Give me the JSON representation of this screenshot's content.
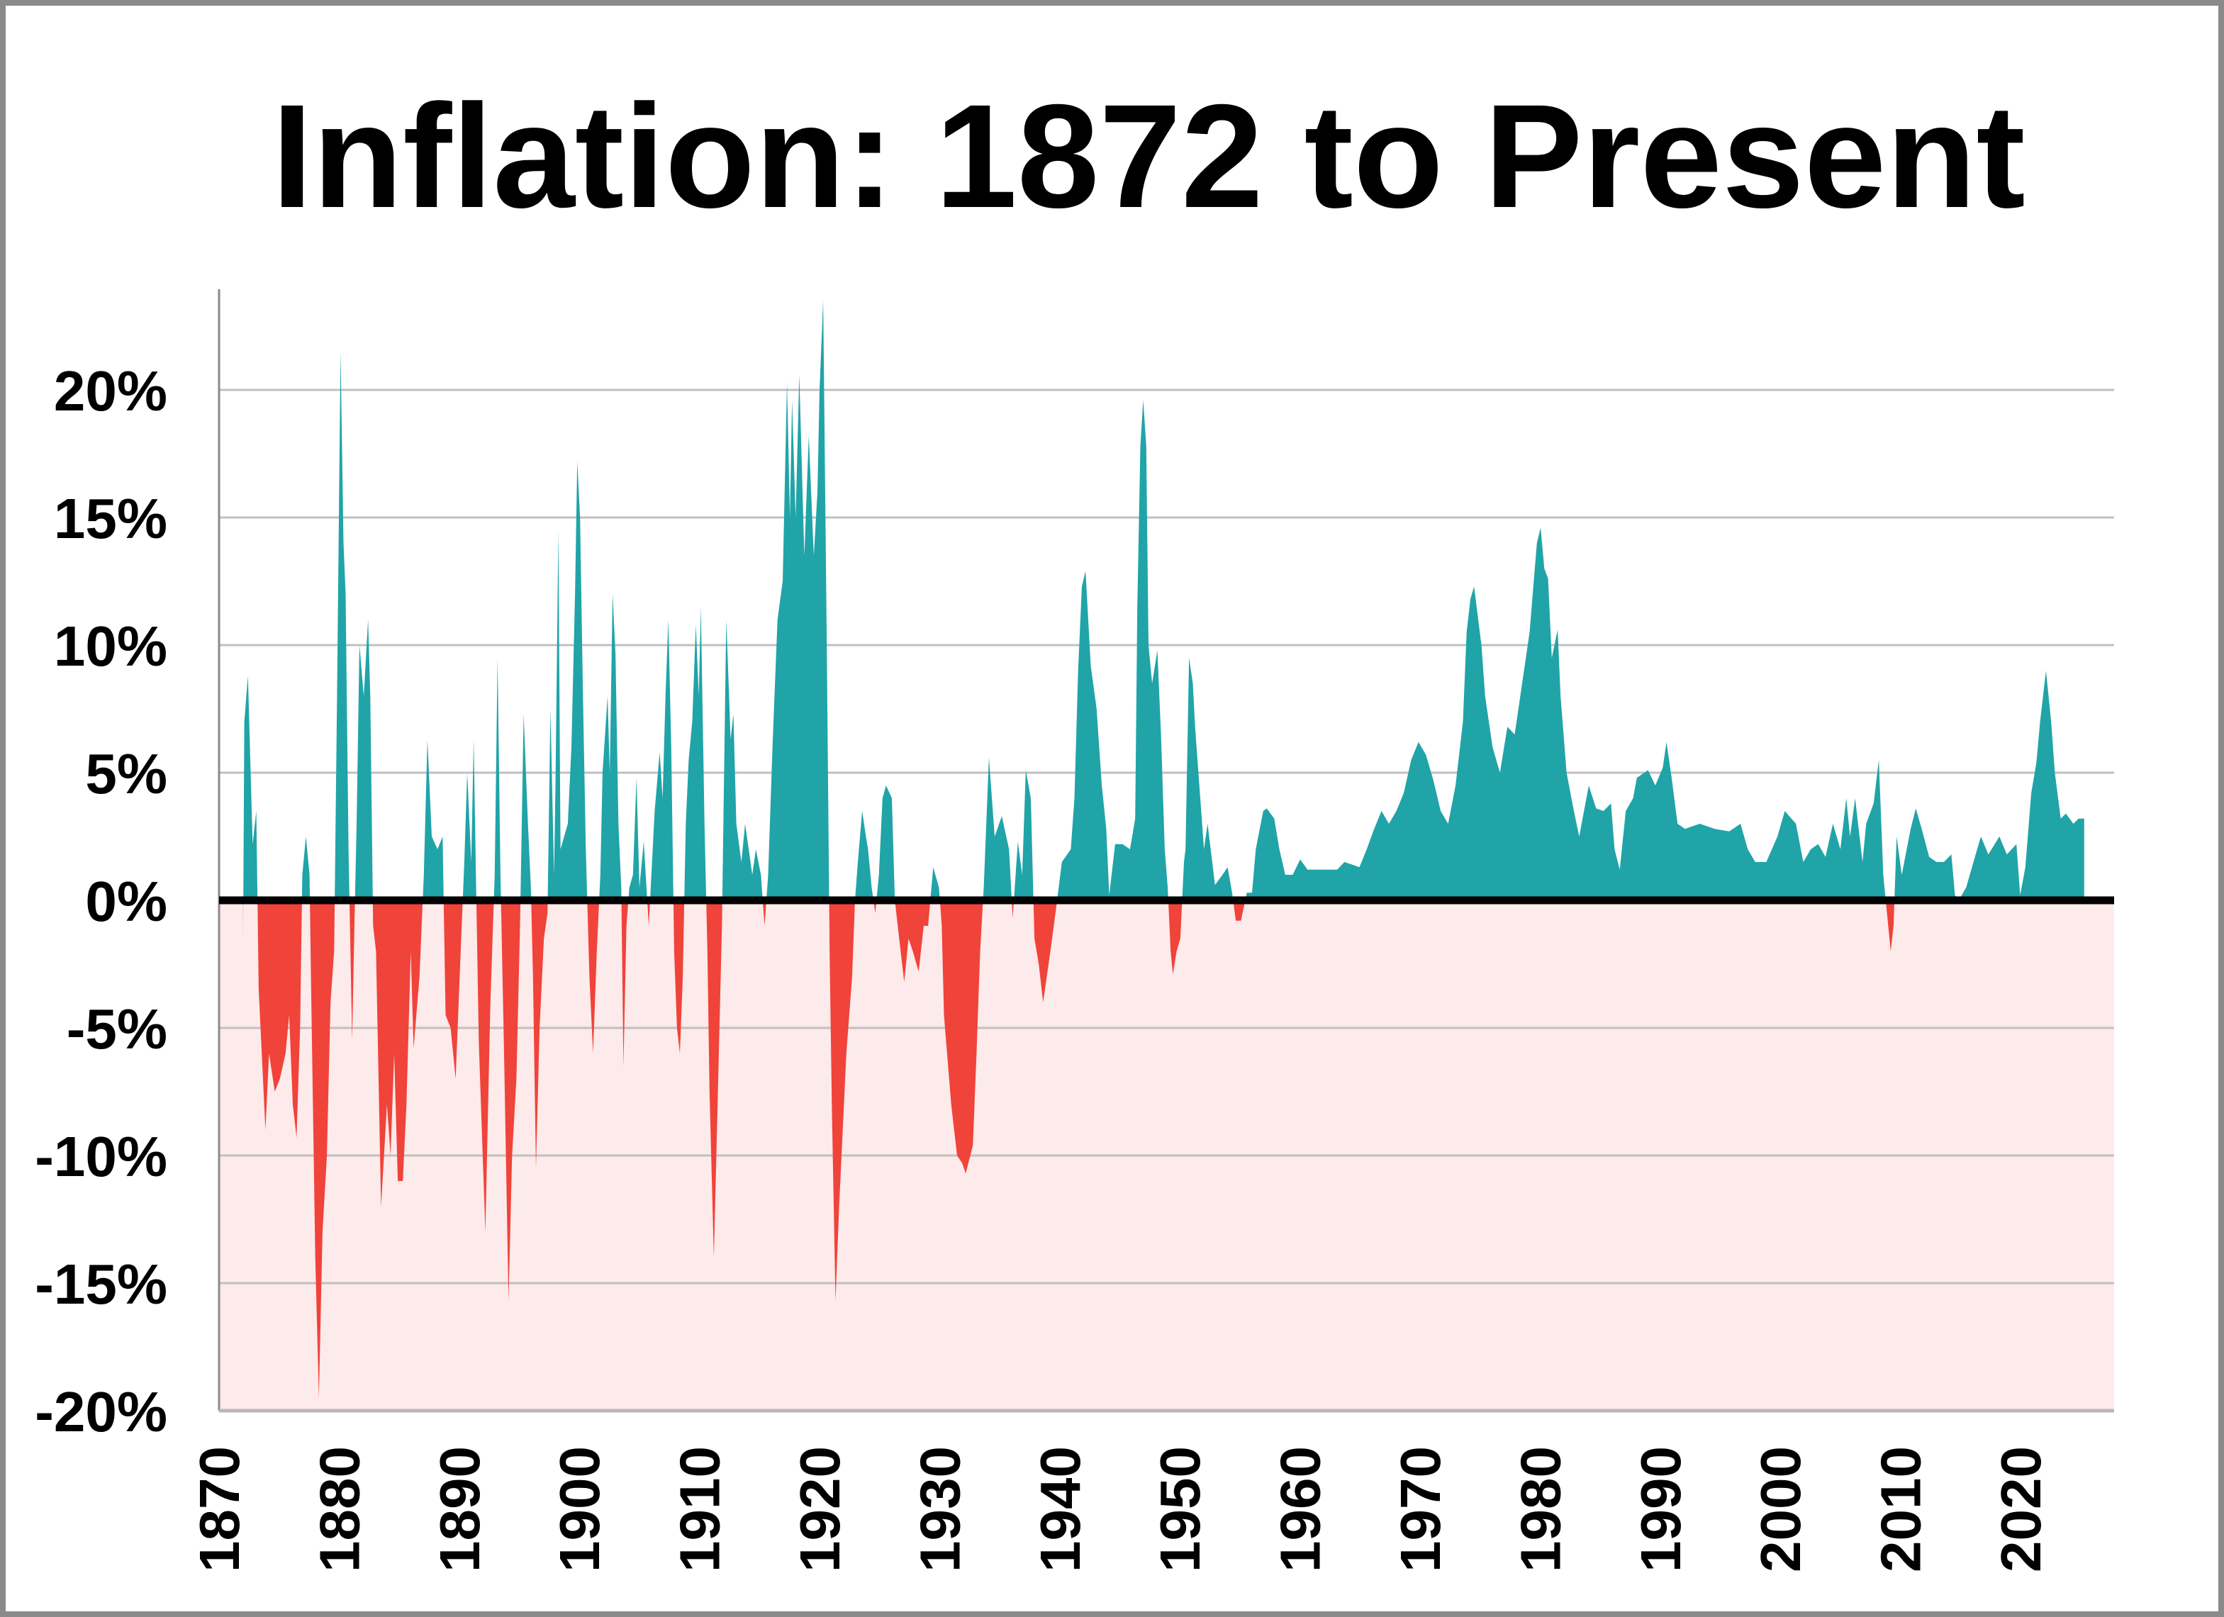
{
  "chart_data": {
    "type": "area",
    "title": "Inflation: 1872 to Present",
    "xlabel": "",
    "ylabel": "",
    "xlim": [
      1870,
      2028.5
    ],
    "ylim": [
      -20,
      23.5
    ],
    "grid": true,
    "colors": {
      "positive": "#20a4a8",
      "negative": "#f0433a",
      "negative_background": "#fdeaea",
      "grid": "#c0c0c0",
      "zero_line": "#000000",
      "border": "#8a8a8a"
    },
    "y_ticks": [
      {
        "value": 20,
        "label": "20%"
      },
      {
        "value": 15,
        "label": "15%"
      },
      {
        "value": 10,
        "label": "10%"
      },
      {
        "value": 5,
        "label": "5%"
      },
      {
        "value": 0,
        "label": "0%"
      },
      {
        "value": -5,
        "label": "-5%"
      },
      {
        "value": -10,
        "label": "-10%"
      },
      {
        "value": -15,
        "label": "-15%"
      },
      {
        "value": -20,
        "label": "-20%"
      }
    ],
    "x_ticks": [
      {
        "value": 1870,
        "label": "1870"
      },
      {
        "value": 1880,
        "label": "1880"
      },
      {
        "value": 1890,
        "label": "1890"
      },
      {
        "value": 1900,
        "label": "1900"
      },
      {
        "value": 1910,
        "label": "1910"
      },
      {
        "value": 1920,
        "label": "1920"
      },
      {
        "value": 1930,
        "label": "1930"
      },
      {
        "value": 1940,
        "label": "1940"
      },
      {
        "value": 1950,
        "label": "1950"
      },
      {
        "value": 1960,
        "label": "1960"
      },
      {
        "value": 1970,
        "label": "1970"
      },
      {
        "value": 1980,
        "label": "1980"
      },
      {
        "value": 1990,
        "label": "1990"
      },
      {
        "value": 2000,
        "label": "2000"
      },
      {
        "value": 2010,
        "label": "2010"
      },
      {
        "value": 2020,
        "label": "2020"
      }
    ],
    "points": [
      [
        1872.0,
        -1.5
      ],
      [
        1872.1,
        7
      ],
      [
        1872.4,
        8.8
      ],
      [
        1872.8,
        2.2
      ],
      [
        1873.1,
        3.5
      ],
      [
        1873.3,
        -3.5
      ],
      [
        1873.86,
        -9
      ],
      [
        1874.16,
        -6
      ],
      [
        1874.64,
        -7.5
      ],
      [
        1875.06,
        -7
      ],
      [
        1875.54,
        -6
      ],
      [
        1875.84,
        -4.5
      ],
      [
        1876.14,
        -8
      ],
      [
        1876.45,
        -9.3
      ],
      [
        1876.75,
        -5
      ],
      [
        1876.93,
        1
      ],
      [
        1877.23,
        2.5
      ],
      [
        1877.53,
        1
      ],
      [
        1877.65,
        -3
      ],
      [
        1878.01,
        -14
      ],
      [
        1878.31,
        -19.5
      ],
      [
        1878.61,
        -13
      ],
      [
        1878.98,
        -10
      ],
      [
        1879.28,
        -4
      ],
      [
        1879.58,
        -2
      ],
      [
        1879.82,
        8
      ],
      [
        1880.12,
        21.5
      ],
      [
        1880.36,
        14
      ],
      [
        1880.54,
        12
      ],
      [
        1880.78,
        2
      ],
      [
        1881.08,
        -5.5
      ],
      [
        1881.27,
        -1
      ],
      [
        1881.45,
        3
      ],
      [
        1881.69,
        10
      ],
      [
        1882.05,
        8
      ],
      [
        1882.41,
        11
      ],
      [
        1882.59,
        8
      ],
      [
        1882.83,
        -1
      ],
      [
        1883.07,
        -2
      ],
      [
        1883.49,
        -12
      ],
      [
        1883.98,
        -8
      ],
      [
        1884.28,
        -10
      ],
      [
        1884.58,
        -6
      ],
      [
        1884.88,
        -11
      ],
      [
        1885.3,
        -11
      ],
      [
        1885.6,
        -8
      ],
      [
        1885.96,
        -2
      ],
      [
        1886.2,
        -5.8
      ],
      [
        1886.69,
        -3
      ],
      [
        1887.05,
        1
      ],
      [
        1887.35,
        6.3
      ],
      [
        1887.71,
        2.5
      ],
      [
        1888.19,
        2
      ],
      [
        1888.61,
        2.5
      ],
      [
        1888.86,
        -4.5
      ],
      [
        1889.28,
        -5
      ],
      [
        1889.7,
        -7
      ],
      [
        1890.12,
        -2
      ],
      [
        1890.42,
        1.5
      ],
      [
        1890.66,
        5
      ],
      [
        1891.0,
        1.5
      ],
      [
        1891.2,
        6.3
      ],
      [
        1891.39,
        1
      ],
      [
        1891.63,
        -5.6
      ],
      [
        1892.17,
        -13
      ],
      [
        1892.59,
        -4
      ],
      [
        1892.95,
        1
      ],
      [
        1893.19,
        9.5
      ],
      [
        1893.43,
        1
      ],
      [
        1893.73,
        -6
      ],
      [
        1894.1,
        -15.7
      ],
      [
        1894.4,
        -10
      ],
      [
        1894.76,
        -7
      ],
      [
        1895.06,
        -1
      ],
      [
        1895.36,
        7.3
      ],
      [
        1895.72,
        3
      ],
      [
        1895.96,
        0.5
      ],
      [
        1896.14,
        -3
      ],
      [
        1896.39,
        -10.5
      ],
      [
        1896.69,
        -5
      ],
      [
        1897.05,
        -1.5
      ],
      [
        1897.35,
        -0.5
      ],
      [
        1897.59,
        7.5
      ],
      [
        1897.89,
        1
      ],
      [
        1898.01,
        4.5
      ],
      [
        1898.25,
        14.5
      ],
      [
        1898.43,
        2
      ],
      [
        1899.04,
        3
      ],
      [
        1899.34,
        6
      ],
      [
        1899.64,
        12
      ],
      [
        1899.82,
        17.2
      ],
      [
        1900.06,
        15
      ],
      [
        1900.3,
        8
      ],
      [
        1900.54,
        2
      ],
      [
        1900.84,
        -3
      ],
      [
        1901.14,
        -6
      ],
      [
        1901.45,
        -2
      ],
      [
        1901.75,
        1
      ],
      [
        1901.93,
        5
      ],
      [
        1902.35,
        8
      ],
      [
        1902.53,
        5
      ],
      [
        1902.77,
        12
      ],
      [
        1903.01,
        9.6
      ],
      [
        1903.25,
        3
      ],
      [
        1903.49,
        0.5
      ],
      [
        1903.67,
        -6.5
      ],
      [
        1903.92,
        -1
      ],
      [
        1904.16,
        0.5
      ],
      [
        1904.46,
        1
      ],
      [
        1904.76,
        4.8
      ],
      [
        1905.0,
        0.5
      ],
      [
        1905.36,
        2.3
      ],
      [
        1905.78,
        -1
      ],
      [
        1906.27,
        3.5
      ],
      [
        1906.69,
        5.8
      ],
      [
        1906.93,
        4
      ],
      [
        1907.17,
        8
      ],
      [
        1907.41,
        11
      ],
      [
        1907.65,
        6
      ],
      [
        1907.89,
        -2
      ],
      [
        1908.13,
        -5
      ],
      [
        1908.37,
        -6
      ],
      [
        1908.61,
        -3
      ],
      [
        1908.86,
        3
      ],
      [
        1909.1,
        5.5
      ],
      [
        1909.4,
        7
      ],
      [
        1909.7,
        10.8
      ],
      [
        1909.94,
        8
      ],
      [
        1910.12,
        11.5
      ],
      [
        1910.42,
        3
      ],
      [
        1910.66,
        -2
      ],
      [
        1910.84,
        -7.5
      ],
      [
        1911.2,
        -14
      ],
      [
        1911.51,
        -8
      ],
      [
        1911.87,
        -1
      ],
      [
        1912.23,
        11
      ],
      [
        1912.47,
        8
      ],
      [
        1912.59,
        6.3
      ],
      [
        1912.83,
        7.3
      ],
      [
        1913.07,
        3
      ],
      [
        1913.49,
        1.5
      ],
      [
        1913.8,
        3
      ],
      [
        1914.4,
        1
      ],
      [
        1914.7,
        2
      ],
      [
        1915.12,
        1
      ],
      [
        1915.42,
        -1
      ],
      [
        1915.72,
        1
      ],
      [
        1916.08,
        6
      ],
      [
        1916.5,
        11
      ],
      [
        1916.93,
        12.5
      ],
      [
        1917.29,
        20.3
      ],
      [
        1917.53,
        15
      ],
      [
        1917.71,
        19.6
      ],
      [
        1918.01,
        15
      ],
      [
        1918.31,
        20.6
      ],
      [
        1918.73,
        13.5
      ],
      [
        1919.1,
        18.2
      ],
      [
        1919.52,
        13.5
      ],
      [
        1919.82,
        16
      ],
      [
        1920.0,
        20
      ],
      [
        1920.3,
        23.5
      ],
      [
        1920.6,
        10
      ],
      [
        1920.84,
        -2
      ],
      [
        1921.02,
        -8
      ],
      [
        1921.33,
        -15.7
      ],
      [
        1921.63,
        -12
      ],
      [
        1922.23,
        -6
      ],
      [
        1922.71,
        -3
      ],
      [
        1922.95,
        0
      ],
      [
        1923.19,
        1.5
      ],
      [
        1923.55,
        3.5
      ],
      [
        1923.86,
        2.5
      ],
      [
        1924.04,
        2
      ],
      [
        1924.34,
        0.5
      ],
      [
        1924.64,
        -0.5
      ],
      [
        1924.94,
        1
      ],
      [
        1925.24,
        4
      ],
      [
        1925.54,
        4.5
      ],
      [
        1926.02,
        4
      ],
      [
        1926.27,
        0
      ],
      [
        1926.63,
        -1.5
      ],
      [
        1927.05,
        -3.2
      ],
      [
        1927.41,
        -1.5
      ],
      [
        1927.77,
        -2
      ],
      [
        1928.25,
        -2.8
      ],
      [
        1928.67,
        -1
      ],
      [
        1929.04,
        -1
      ],
      [
        1929.46,
        1.3
      ],
      [
        1929.94,
        0.5
      ],
      [
        1930.18,
        -1
      ],
      [
        1930.36,
        -4.5
      ],
      [
        1930.96,
        -8
      ],
      [
        1931.45,
        -10
      ],
      [
        1931.87,
        -10.3
      ],
      [
        1932.17,
        -10.7
      ],
      [
        1932.77,
        -9.6
      ],
      [
        1933.07,
        -6
      ],
      [
        1933.37,
        -2
      ],
      [
        1933.67,
        0.5
      ],
      [
        1934.1,
        5.6
      ],
      [
        1934.58,
        2.5
      ],
      [
        1935.18,
        3.3
      ],
      [
        1935.78,
        2
      ],
      [
        1936.08,
        -0.7
      ],
      [
        1936.51,
        2.3
      ],
      [
        1936.87,
        1
      ],
      [
        1937.17,
        5.1
      ],
      [
        1937.59,
        4
      ],
      [
        1937.89,
        -1.5
      ],
      [
        1938.25,
        -2.5
      ],
      [
        1938.61,
        -4
      ],
      [
        1939.22,
        -2
      ],
      [
        1939.7,
        -0.3
      ],
      [
        1940.18,
        1.5
      ],
      [
        1940.92,
        2
      ],
      [
        1941.22,
        4
      ],
      [
        1941.53,
        9
      ],
      [
        1941.84,
        12.3
      ],
      [
        1942.15,
        12.9
      ],
      [
        1942.58,
        9.2
      ],
      [
        1943.07,
        7.5
      ],
      [
        1943.5,
        4.5
      ],
      [
        1943.87,
        2.8
      ],
      [
        1944.12,
        0.2
      ],
      [
        1944.61,
        2.2
      ],
      [
        1945.23,
        2.2
      ],
      [
        1945.85,
        2
      ],
      [
        1946.28,
        3.2
      ],
      [
        1946.46,
        11.5
      ],
      [
        1946.71,
        17.8
      ],
      [
        1946.95,
        19.6
      ],
      [
        1947.2,
        17.8
      ],
      [
        1947.39,
        10
      ],
      [
        1947.69,
        8.5
      ],
      [
        1948.13,
        9.8
      ],
      [
        1948.43,
        6.5
      ],
      [
        1948.74,
        2
      ],
      [
        1948.99,
        0.5
      ],
      [
        1949.23,
        -2
      ],
      [
        1949.42,
        -2.9
      ],
      [
        1949.73,
        -2
      ],
      [
        1950.04,
        -1.5
      ],
      [
        1950.34,
        1.5
      ],
      [
        1950.47,
        2
      ],
      [
        1950.77,
        9.5
      ],
      [
        1951.08,
        8.5
      ],
      [
        1951.27,
        6.8
      ],
      [
        1951.7,
        4
      ],
      [
        1952.01,
        2
      ],
      [
        1952.31,
        3
      ],
      [
        1952.93,
        0.6
      ],
      [
        1953.55,
        1
      ],
      [
        1953.98,
        1.3
      ],
      [
        1954.35,
        0.3
      ],
      [
        1954.66,
        -0.8
      ],
      [
        1955.09,
        -0.8
      ],
      [
        1955.58,
        0.3
      ],
      [
        1956.01,
        0.3
      ],
      [
        1956.32,
        2
      ],
      [
        1956.94,
        3.5
      ],
      [
        1957.24,
        3.6
      ],
      [
        1957.86,
        3.2
      ],
      [
        1958.29,
        2
      ],
      [
        1958.78,
        1
      ],
      [
        1959.4,
        1
      ],
      [
        1960.02,
        1.6
      ],
      [
        1960.63,
        1.2
      ],
      [
        1961.87,
        1.2
      ],
      [
        1963.1,
        1.2
      ],
      [
        1963.71,
        1.5
      ],
      [
        1964.95,
        1.3
      ],
      [
        1965.56,
        2
      ],
      [
        1966.18,
        2.8
      ],
      [
        1966.79,
        3.5
      ],
      [
        1967.41,
        3
      ],
      [
        1968.03,
        3.5
      ],
      [
        1968.64,
        4.2
      ],
      [
        1969.26,
        5.5
      ],
      [
        1969.87,
        6.2
      ],
      [
        1970.49,
        5.7
      ],
      [
        1971.11,
        4.7
      ],
      [
        1971.72,
        3.5
      ],
      [
        1972.34,
        3
      ],
      [
        1972.96,
        4.5
      ],
      [
        1973.57,
        7
      ],
      [
        1973.88,
        10.5
      ],
      [
        1974.19,
        11.8
      ],
      [
        1974.5,
        12.3
      ],
      [
        1975.11,
        10
      ],
      [
        1975.42,
        8
      ],
      [
        1976.04,
        6
      ],
      [
        1976.65,
        5
      ],
      [
        1977.27,
        6.8
      ],
      [
        1977.88,
        6.5
      ],
      [
        1978.5,
        8.5
      ],
      [
        1979.12,
        10.5
      ],
      [
        1979.73,
        14
      ],
      [
        1980.04,
        14.6
      ],
      [
        1980.35,
        13
      ],
      [
        1980.66,
        12.6
      ],
      [
        1980.97,
        9.5
      ],
      [
        1981.46,
        10.6
      ],
      [
        1981.7,
        8
      ],
      [
        1982.2,
        5
      ],
      [
        1982.81,
        3.5
      ],
      [
        1983.25,
        2.5
      ],
      [
        1984.05,
        4.5
      ],
      [
        1984.66,
        3.6
      ],
      [
        1985.28,
        3.5
      ],
      [
        1985.9,
        3.8
      ],
      [
        1986.2,
        2
      ],
      [
        1986.63,
        1.2
      ],
      [
        1987.13,
        3.5
      ],
      [
        1987.74,
        4
      ],
      [
        1988.05,
        4.8
      ],
      [
        1988.98,
        5.1
      ],
      [
        1989.59,
        4.5
      ],
      [
        1990.21,
        5.2
      ],
      [
        1990.52,
        6.2
      ],
      [
        1990.95,
        4.8
      ],
      [
        1991.44,
        3
      ],
      [
        1992.06,
        2.8
      ],
      [
        1993.29,
        3
      ],
      [
        1994.52,
        2.8
      ],
      [
        1995.75,
        2.7
      ],
      [
        1996.68,
        3
      ],
      [
        1997.29,
        2
      ],
      [
        1997.91,
        1.5
      ],
      [
        1998.83,
        1.5
      ],
      [
        1999.76,
        2.5
      ],
      [
        2000.37,
        3.5
      ],
      [
        2001.3,
        3
      ],
      [
        2001.91,
        1.5
      ],
      [
        2002.53,
        2
      ],
      [
        2003.15,
        2.2
      ],
      [
        2003.76,
        1.7
      ],
      [
        2004.38,
        3
      ],
      [
        2005.0,
        2
      ],
      [
        2005.49,
        4
      ],
      [
        2005.8,
        2.5
      ],
      [
        2006.23,
        4
      ],
      [
        2006.84,
        1.5
      ],
      [
        2007.15,
        3
      ],
      [
        2007.77,
        3.8
      ],
      [
        2008.2,
        5.5
      ],
      [
        2008.57,
        1
      ],
      [
        2008.88,
        -0.5
      ],
      [
        2009.19,
        -2
      ],
      [
        2009.43,
        -1
      ],
      [
        2009.68,
        2.5
      ],
      [
        2010.11,
        1
      ],
      [
        2010.85,
        2.8
      ],
      [
        2011.28,
        3.6
      ],
      [
        2011.77,
        2.8
      ],
      [
        2012.39,
        1.7
      ],
      [
        2013.0,
        1.5
      ],
      [
        2013.62,
        1.5
      ],
      [
        2014.24,
        1.8
      ],
      [
        2014.54,
        0.2
      ],
      [
        2014.85,
        0
      ],
      [
        2015.47,
        0.5
      ],
      [
        2016.08,
        1.5
      ],
      [
        2016.7,
        2.5
      ],
      [
        2017.32,
        1.8
      ],
      [
        2018.24,
        2.5
      ],
      [
        2018.86,
        1.8
      ],
      [
        2019.66,
        2.2
      ],
      [
        2019.97,
        0.2
      ],
      [
        2020.4,
        1.3
      ],
      [
        2020.89,
        4.2
      ],
      [
        2021.32,
        5.4
      ],
      [
        2021.63,
        7
      ],
      [
        2022.12,
        9
      ],
      [
        2022.55,
        7
      ],
      [
        2022.86,
        5
      ],
      [
        2023.35,
        3.2
      ],
      [
        2023.78,
        3.4
      ],
      [
        2024.4,
        3
      ],
      [
        2024.83,
        3.2
      ],
      [
        2025.3,
        3.2
      ]
    ]
  }
}
